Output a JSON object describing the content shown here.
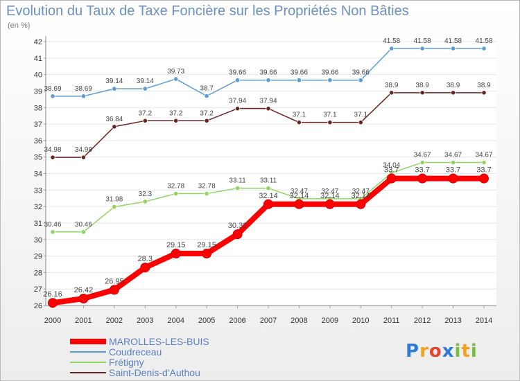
{
  "chart_data": {
    "type": "line",
    "title": "Evolution du Taux de Taxe Foncière sur les Propriétés Non Bâties",
    "subtitle": "(en %)",
    "x": [
      "2000",
      "2001",
      "2002",
      "2003",
      "2004",
      "2005",
      "2006",
      "2007",
      "2008",
      "2009",
      "2010",
      "2011",
      "2012",
      "2013",
      "2014"
    ],
    "ylim": [
      26,
      42
    ],
    "yticks": [
      26,
      27,
      28,
      29,
      30,
      31,
      32,
      33,
      34,
      35,
      36,
      37,
      38,
      39,
      40,
      41,
      42
    ],
    "series": [
      {
        "name": "Coudreceau",
        "color": "#5b9bd5",
        "width": 1.5,
        "radius": 3.2,
        "values": [
          38.69,
          38.69,
          39.14,
          39.14,
          39.73,
          38.7,
          39.66,
          39.66,
          39.66,
          39.66,
          39.66,
          41.58,
          41.58,
          41.58,
          41.58
        ],
        "labels": [
          "38.69",
          "38.69",
          "39.14",
          "39.14",
          "39.73",
          "38.7",
          "39.66",
          "39.66",
          "39.66",
          "39.66",
          "39.66",
          "41.58",
          "41.58",
          "41.58",
          "41.58"
        ]
      },
      {
        "name": "Saint-Denis-d'Authou",
        "color": "#6b2424",
        "width": 1.5,
        "radius": 3.2,
        "values": [
          34.98,
          34.98,
          36.84,
          37.2,
          37.2,
          37.2,
          37.94,
          37.94,
          37.1,
          37.1,
          37.1,
          38.9,
          38.9,
          38.9,
          38.9
        ],
        "labels": [
          "34.98",
          "34.98",
          "36.84",
          "37.2",
          "37.2",
          "37.2",
          "37.94",
          "37.94",
          "37.1",
          "37.1",
          "37.1",
          "38.9",
          "38.9",
          "38.9",
          "38.9"
        ]
      },
      {
        "name": "Frétigny",
        "color": "#8fd460",
        "width": 1.5,
        "radius": 3.2,
        "values": [
          30.46,
          30.46,
          31.98,
          32.3,
          32.78,
          32.78,
          33.11,
          33.11,
          32.47,
          32.47,
          32.47,
          34.04,
          34.67,
          34.67,
          34.67
        ],
        "labels": [
          "30.46",
          "30.46",
          "31.98",
          "32.3",
          "32.78",
          "32.78",
          "33.11",
          "33.11",
          "32.47",
          "32.47",
          "32.47",
          "34.04",
          "34.67",
          "34.67",
          "34.67"
        ]
      },
      {
        "name": "MAROLLES-LES-BUIS",
        "color": "#ff0000",
        "width": 8,
        "radius": 6.5,
        "values": [
          26.16,
          26.42,
          26.95,
          28.3,
          29.15,
          29.15,
          30.32,
          32.14,
          32.14,
          32.14,
          32.14,
          33.7,
          33.7,
          33.7,
          33.7
        ],
        "labels": [
          "26.16",
          "26.42",
          "26.95",
          "28.3",
          "29.15",
          "29.15",
          "30.32",
          "32.14",
          "32.14",
          "32.14",
          "32.14",
          "33.7",
          "33.7",
          "33.7",
          "33.7"
        ]
      }
    ],
    "legend": [
      {
        "name": "MAROLLES-LES-BUIS",
        "color": "#ff0000",
        "thick": true
      },
      {
        "name": "Coudreceau",
        "color": "#5b9bd5",
        "thick": false
      },
      {
        "name": "Frétigny",
        "color": "#8fd460",
        "thick": false
      },
      {
        "name": "Saint-Denis-d'Authou",
        "color": "#6b2424",
        "thick": false
      }
    ]
  },
  "logo": {
    "text": "Proxiti",
    "letters": [
      {
        "ch": "P",
        "color": "#2e7bd6"
      },
      {
        "ch": "r",
        "color": "#f2a01e"
      },
      {
        "ch": "o",
        "color": "#e2452b"
      },
      {
        "ch": "x",
        "color": "#2e7bd6"
      },
      {
        "ch": "i",
        "color": "#78bd3b"
      },
      {
        "ch": "t",
        "color": "#f2a01e"
      },
      {
        "ch": "i",
        "color": "#78bd3b"
      }
    ]
  }
}
